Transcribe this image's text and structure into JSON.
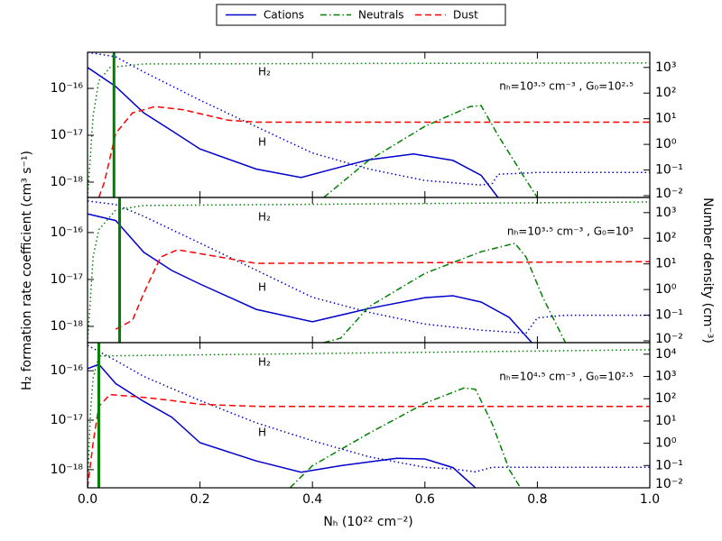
{
  "chart_data": {
    "type": "line",
    "xlabel": "Nₕ (10²² cm⁻²)",
    "ylabel": "H₂ formation rate coefficient (cm³ s⁻¹)",
    "y2label": "Number density (cm⁻³)",
    "yscale": "log",
    "y2scale": "log",
    "xlim": [
      0,
      1.0
    ],
    "xticks": [
      {
        "value": 0,
        "label": "0.0"
      },
      0.2,
      0.4,
      0.6,
      0.8,
      {
        "value": 1.0,
        "label": "1.0"
      }
    ],
    "legend": "top-center",
    "series": [
      {
        "name": "Cations",
        "color": "#0000cc",
        "linestyle": "solid"
      },
      {
        "name": "Neutrals",
        "color": "#008000",
        "linestyle": "dashdot"
      },
      {
        "name": "Dust",
        "color": "#ff0000",
        "linestyle": "dashed"
      }
    ],
    "density_styles": [
      {
        "color": "#008000",
        "linestyle": "dotted"
      },
      {
        "color": "#0000cc",
        "linestyle": "dotted"
      }
    ],
    "vline_color": "#008000",
    "panels": [
      {
        "annotation": "nₕ=10³·⁵ cm⁻³ , G₀=10²·⁵",
        "labels": [
          "H₂",
          "H"
        ],
        "vline": 0.047,
        "ylim": [
          4.7e-19,
          5.9e-16
        ],
        "yticks": [
          {
            "value": 1e-18,
            "label": "10⁻¹⁸"
          },
          {
            "value": 1e-17,
            "label": "10⁻¹⁷"
          },
          {
            "value": 1e-16,
            "label": "10⁻¹⁶"
          }
        ],
        "y2lim": [
          0.0085,
          3900
        ],
        "y2ticks": [
          {
            "value": 0.01,
            "label": "10⁻²"
          },
          {
            "value": 0.1,
            "label": "10⁻¹"
          },
          {
            "value": 1,
            "label": "10⁰"
          },
          {
            "value": 10,
            "label": "10¹"
          },
          {
            "value": 100,
            "label": "10²"
          },
          {
            "value": 1000,
            "label": "10³"
          }
        ],
        "rates": [
          {
            "x": [
              0,
              0.05,
              0.1,
              0.15,
              0.2,
              0.3,
              0.38,
              0.45,
              0.5,
              0.58,
              0.65,
              0.7,
              0.73
            ],
            "values": [
              2.8e-16,
              1.1e-16,
              3e-17,
              1.25e-17,
              5.1e-18,
              1.9e-18,
              1.25e-18,
              2.1e-18,
              3e-18,
              4e-18,
              2.9e-18,
              1.4e-18,
              4.7e-19
            ]
          },
          {
            "x": [
              0.42,
              0.5,
              0.6,
              0.68,
              0.7,
              0.73,
              0.78,
              0.8
            ],
            "values": [
              4.7e-19,
              2.9e-18,
              1.55e-17,
              4.1e-17,
              4.3e-17,
              1e-17,
              1.1e-18,
              4.7e-19
            ]
          },
          {
            "x": [
              0.02,
              0.03,
              0.05,
              0.08,
              0.12,
              0.17,
              0.25,
              0.3,
              1.0
            ],
            "values": [
              4.7e-19,
              1e-18,
              1.1e-17,
              3e-17,
              4.1e-17,
              3.5e-17,
              2.1e-17,
              1.9e-17,
              1.9e-17
            ]
          }
        ],
        "density": [
          {
            "axis": "y2",
            "x": [
              0,
              0.01,
              0.02,
              0.04,
              0.1,
              1.0
            ],
            "values": [
              0.0085,
              13,
              300,
              1000,
              1370,
              1500
            ]
          },
          {
            "axis": "y2",
            "x": [
              0,
              0.05,
              0.1,
              0.2,
              0.3,
              0.4,
              0.5,
              0.6,
              0.7,
              0.72,
              0.73,
              0.8,
              1.0
            ],
            "values": [
              3900,
              2600,
              670,
              53,
              4.9,
              0.46,
              0.11,
              0.039,
              0.026,
              0.03,
              0.068,
              0.08,
              0.08
            ]
          }
        ]
      },
      {
        "annotation": "nₕ=10³·⁵ cm⁻³ , G₀=10³",
        "labels": [
          "H₂",
          "H"
        ],
        "vline": 0.057,
        "ylim": [
          4.5e-19,
          5.6e-16
        ],
        "yticks": [
          {
            "value": 1e-18,
            "label": "10⁻¹⁸"
          },
          {
            "value": 1e-17,
            "label": "10⁻¹⁷"
          },
          {
            "value": 1e-16,
            "label": "10⁻¹⁶"
          }
        ],
        "y2lim": [
          0.0085,
          3900
        ],
        "y2ticks": [
          {
            "value": 0.01,
            "label": "10⁻²"
          },
          {
            "value": 0.1,
            "label": "10⁻¹"
          },
          {
            "value": 1,
            "label": "10⁰"
          },
          {
            "value": 10,
            "label": "10¹"
          },
          {
            "value": 100,
            "label": "10²"
          },
          {
            "value": 1000,
            "label": "10³"
          }
        ],
        "rates": [
          {
            "x": [
              0,
              0.05,
              0.1,
              0.15,
              0.2,
              0.3,
              0.4,
              0.5,
              0.6,
              0.65,
              0.7,
              0.75,
              0.79
            ],
            "values": [
              2.5e-16,
              1.8e-16,
              3.8e-17,
              1.55e-17,
              8e-18,
              2.3e-18,
              1.25e-18,
              2.4e-18,
              4.1e-18,
              4.5e-18,
              3.3e-18,
              1.55e-18,
              4.5e-19
            ]
          },
          {
            "x": [
              0.42,
              0.45,
              0.5,
              0.6,
              0.7,
              0.76,
              0.78,
              0.81,
              0.85
            ],
            "values": [
              4.5e-19,
              5.6e-19,
              2.6e-18,
              1.35e-17,
              3.9e-17,
              5.9e-17,
              3e-17,
              4.1e-18,
              4.5e-19
            ]
          },
          {
            "x": [
              0.05,
              0.08,
              0.1,
              0.13,
              0.16,
              0.25,
              0.3,
              1.0
            ],
            "values": [
              8.7e-19,
              1.35e-18,
              5.1e-18,
              3e-17,
              4.3e-17,
              2.8e-17,
              2.2e-17,
              2.4e-17
            ]
          }
        ],
        "density": [
          {
            "axis": "y2",
            "x": [
              0,
              0.01,
              0.02,
              0.05,
              0.1,
              1.0
            ],
            "values": [
              0.0085,
              19,
              215,
              1270,
              1900,
              2600
            ]
          },
          {
            "axis": "y2",
            "x": [
              0,
              0.05,
              0.1,
              0.2,
              0.3,
              0.4,
              0.5,
              0.6,
              0.7,
              0.78,
              0.8,
              0.85,
              1.0
            ],
            "values": [
              2850,
              2070,
              720,
              65,
              5.7,
              0.5,
              0.13,
              0.045,
              0.026,
              0.02,
              0.079,
              0.1,
              0.1
            ]
          }
        ]
      },
      {
        "annotation": "nₕ=10⁴·⁵ cm⁻³ , G₀=10²·⁵",
        "labels": [
          "H₂",
          "H"
        ],
        "vline": 0.02,
        "ylim": [
          4.3e-19,
          3.7e-16
        ],
        "yticks": [
          {
            "value": 1e-18,
            "label": "10⁻¹⁸"
          },
          {
            "value": 1e-17,
            "label": "10⁻¹⁷"
          },
          {
            "value": 1e-16,
            "label": "10⁻¹⁶"
          }
        ],
        "y2lim": [
          0.01,
          33000
        ],
        "y2ticks": [
          {
            "value": 0.01,
            "label": "10⁻²"
          },
          {
            "value": 0.1,
            "label": "10⁻¹"
          },
          {
            "value": 1,
            "label": "10⁰"
          },
          {
            "value": 10,
            "label": "10¹"
          },
          {
            "value": 100,
            "label": "10²"
          },
          {
            "value": 1000,
            "label": "10³"
          },
          {
            "value": 10000,
            "label": "10⁴"
          }
        ],
        "rates": [
          {
            "x": [
              0,
              0.02,
              0.05,
              0.1,
              0.15,
              0.2,
              0.3,
              0.38,
              0.45,
              0.55,
              0.6,
              0.65,
              0.69
            ],
            "values": [
              1.1e-16,
              1.35e-16,
              5.5e-17,
              2.4e-17,
              1.15e-17,
              3.5e-18,
              1.5e-18,
              8.9e-19,
              1.2e-18,
              1.7e-18,
              1.65e-18,
              1.1e-18,
              4.3e-19
            ]
          },
          {
            "x": [
              0.36,
              0.4,
              0.5,
              0.6,
              0.67,
              0.69,
              0.72,
              0.75,
              0.77
            ],
            "values": [
              4.3e-19,
              1.2e-18,
              5.4e-18,
              2.2e-17,
              4.5e-17,
              4.2e-17,
              8.3e-18,
              1e-18,
              4.3e-19
            ]
          },
          {
            "x": [
              0,
              0.01,
              0.02,
              0.04,
              0.1,
              0.15,
              0.2,
              0.3,
              1.0
            ],
            "values": [
              4.3e-19,
              3.5e-18,
              1.9e-17,
              3.3e-17,
              2.9e-17,
              2.5e-17,
              2.1e-17,
              1.9e-17,
              1.9e-17
            ]
          }
        ],
        "density": [
          {
            "axis": "y2",
            "x": [
              0,
              0.005,
              0.01,
              0.02,
              1.0
            ],
            "values": [
              0.01,
              21,
              830,
              8300,
              15800
            ]
          },
          {
            "axis": "y2",
            "x": [
              0,
              0.05,
              0.1,
              0.2,
              0.3,
              0.4,
              0.5,
              0.6,
              0.65,
              0.69,
              0.72,
              0.8,
              1.0
            ],
            "values": [
              25000,
              5200,
              1000,
              83,
              8.3,
              1.3,
              0.25,
              0.083,
              0.07,
              0.052,
              0.083,
              0.083,
              0.083
            ]
          }
        ]
      }
    ]
  }
}
